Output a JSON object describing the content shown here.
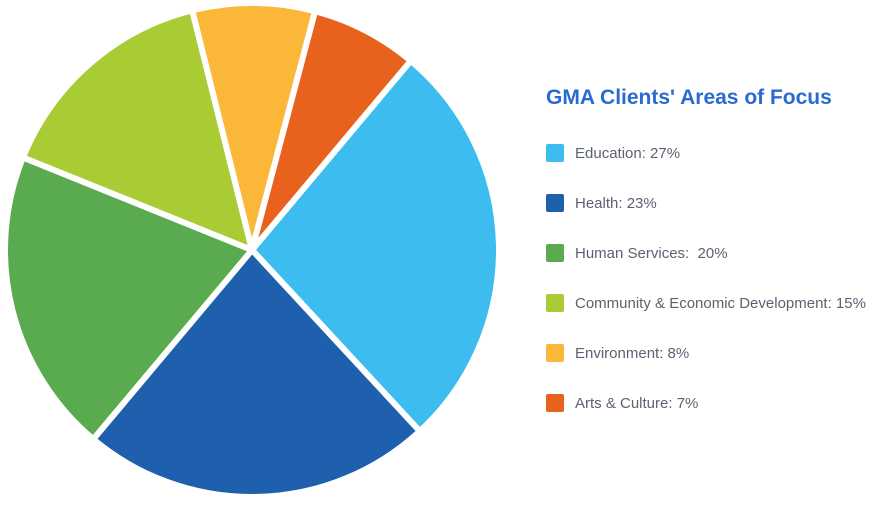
{
  "chart_data": {
    "type": "pie",
    "title": "GMA Clients' Areas of Focus",
    "start_angle_deg": -50,
    "slices": [
      {
        "label": "Education: 27%",
        "value": 27,
        "color": "#3cbcef"
      },
      {
        "label": "Health: 23%",
        "value": 23,
        "color": "#1e5fae"
      },
      {
        "label": "Human Services:  20%",
        "value": 20,
        "color": "#5aab4f"
      },
      {
        "label": "Community & Economic Development: 15%",
        "value": 15,
        "color": "#a9cc35"
      },
      {
        "label": "Environment: 8%",
        "value": 8,
        "color": "#fbb737"
      },
      {
        "label": "Arts & Culture: 7%",
        "value": 7,
        "color": "#e8611d"
      }
    ],
    "legend_position": "right"
  }
}
